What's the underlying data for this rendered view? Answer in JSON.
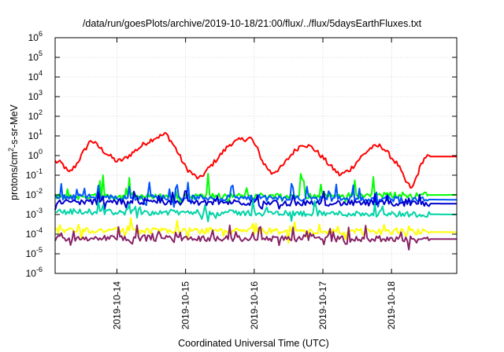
{
  "chart_data": {
    "type": "line",
    "title": "/data/run/goesPlots/archive/2019-10-18/21:00/flux/../flux/5daysEarthFluxes.txt",
    "xlabel": "Coordinated Universal Time (UTC)",
    "ylabel_parts": [
      "protons/cm",
      "2",
      "-s-sr-MeV"
    ],
    "y_scale": "log",
    "ylim_exponents": [
      -6,
      6
    ],
    "y_tick_labels": [
      {
        "base": "10",
        "exp": "-6",
        "e": -6
      },
      {
        "base": "10",
        "exp": "-5",
        "e": -5
      },
      {
        "base": "10",
        "exp": "-4",
        "e": -4
      },
      {
        "base": "10",
        "exp": "-3",
        "e": -3
      },
      {
        "base": "10",
        "exp": "-2",
        "e": -2
      },
      {
        "base": "10",
        "exp": "-1",
        "e": -1
      },
      {
        "base": "10",
        "exp": "0",
        "e": 0
      },
      {
        "base": "10",
        "exp": "1",
        "e": 1
      },
      {
        "base": "10",
        "exp": "2",
        "e": 2
      },
      {
        "base": "10",
        "exp": "3",
        "e": 3
      },
      {
        "base": "10",
        "exp": "4",
        "e": 4
      },
      {
        "base": "10",
        "exp": "5",
        "e": 5
      },
      {
        "base": "10",
        "exp": "6",
        "e": 6
      }
    ],
    "xlim_days": [
      13.1,
      18.95
    ],
    "x_ticks": [
      {
        "label": "2019-10-14",
        "day": 14
      },
      {
        "label": "2019-10-15",
        "day": 15
      },
      {
        "label": "2019-10-16",
        "day": 16
      },
      {
        "label": "2019-10-17",
        "day": 17
      },
      {
        "label": "2019-10-18",
        "day": 18
      }
    ],
    "grid": true,
    "legend": "none",
    "series": [
      {
        "color": "#ff0000",
        "data_end_day": 18.95,
        "spike_prob": 0.0,
        "points_log10": [
          [
            13.1,
            -0.3
          ],
          [
            13.2,
            -0.4
          ],
          [
            13.3,
            -0.9
          ],
          [
            13.4,
            -0.5
          ],
          [
            13.5,
            0.1
          ],
          [
            13.62,
            0.8
          ],
          [
            13.75,
            0.4
          ],
          [
            13.85,
            0.1
          ],
          [
            14.0,
            -0.3
          ],
          [
            14.1,
            -0.2
          ],
          [
            14.25,
            0.2
          ],
          [
            14.4,
            0.6
          ],
          [
            14.55,
            0.9
          ],
          [
            14.72,
            1.1
          ],
          [
            14.85,
            0.4
          ],
          [
            15.0,
            -0.6
          ],
          [
            15.12,
            -1.0
          ],
          [
            15.2,
            -1.2
          ],
          [
            15.35,
            -0.6
          ],
          [
            15.5,
            0.0
          ],
          [
            15.65,
            0.6
          ],
          [
            15.8,
            0.8
          ],
          [
            15.95,
            0.9
          ],
          [
            16.05,
            0.3
          ],
          [
            16.12,
            -0.3
          ],
          [
            16.25,
            -0.9
          ],
          [
            16.4,
            -0.6
          ],
          [
            16.55,
            0.1
          ],
          [
            16.7,
            0.6
          ],
          [
            16.85,
            0.4
          ],
          [
            17.0,
            -0.1
          ],
          [
            17.1,
            -0.5
          ],
          [
            17.25,
            -1.0
          ],
          [
            17.4,
            -0.7
          ],
          [
            17.55,
            -0.1
          ],
          [
            17.7,
            0.4
          ],
          [
            17.85,
            0.5
          ],
          [
            18.0,
            -0.1
          ],
          [
            18.1,
            -0.5
          ],
          [
            18.2,
            -1.3
          ],
          [
            18.3,
            -1.7
          ],
          [
            18.35,
            -1.2
          ],
          [
            18.45,
            -0.3
          ],
          [
            18.5,
            -0.05
          ],
          [
            18.95,
            -0.05
          ]
        ]
      },
      {
        "color": "#00ff00",
        "data_end_day": 18.95,
        "spike_prob": 0.09,
        "spike_hi": 1.2,
        "points_log10": [
          [
            13.1,
            -2.1
          ],
          [
            18.95,
            -2.0
          ]
        ]
      },
      {
        "color": "#0055ff",
        "data_end_day": 18.95,
        "spike_prob": 0.08,
        "spike_hi": 0.8,
        "points_log10": [
          [
            13.1,
            -2.1
          ],
          [
            18.95,
            -2.25
          ]
        ]
      },
      {
        "color": "#0000cc",
        "data_end_day": 18.95,
        "spike_prob": 0.1,
        "spike_hi": 0.5,
        "points_log10": [
          [
            13.1,
            -2.35
          ],
          [
            18.95,
            -2.45
          ]
        ]
      },
      {
        "color": "#00d4a8",
        "data_end_day": 18.95,
        "spike_prob": 0.06,
        "spike_hi": 0.6,
        "points_log10": [
          [
            13.1,
            -2.85
          ],
          [
            18.95,
            -3.0
          ]
        ]
      },
      {
        "color": "#ffff00",
        "data_end_day": 18.95,
        "spike_prob": 0.09,
        "spike_hi": 0.5,
        "points_log10": [
          [
            13.1,
            -3.8
          ],
          [
            18.95,
            -3.9
          ]
        ]
      },
      {
        "color": "#882266",
        "data_end_day": 18.95,
        "spike_prob": 0.1,
        "spike_hi": 0.7,
        "points_log10": [
          [
            13.1,
            -4.2
          ],
          [
            18.95,
            -4.25
          ]
        ]
      }
    ]
  }
}
